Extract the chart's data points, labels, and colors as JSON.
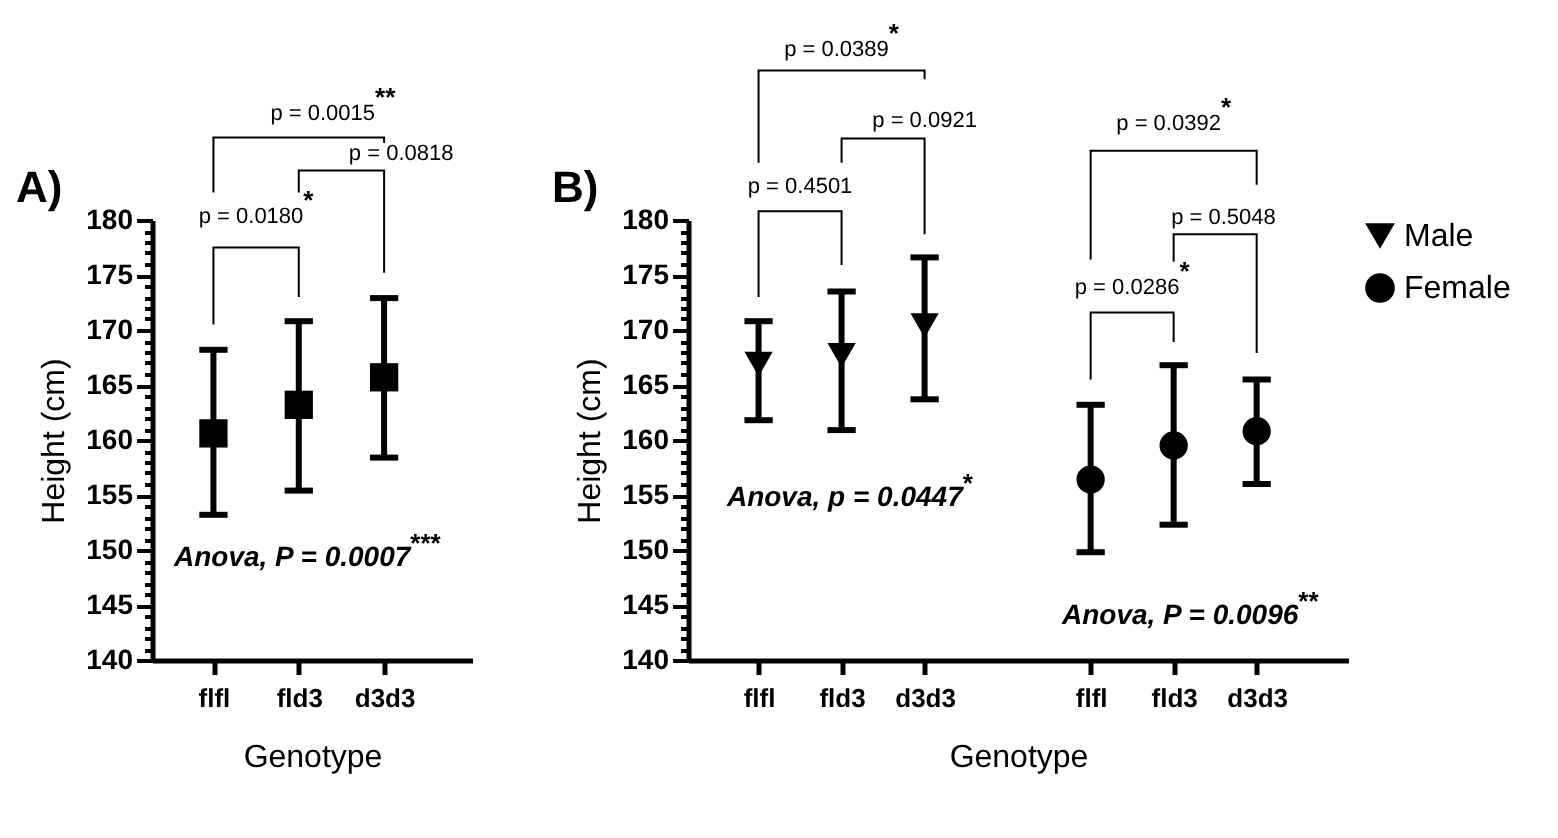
{
  "chart_data": [
    {
      "type": "scatter",
      "title": "A)",
      "xlabel": "Genotype",
      "ylabel": "Height (cm)",
      "categories": [
        "flfl",
        "fld3",
        "d3d3"
      ],
      "marker": "square",
      "color": "#000000",
      "values": [
        160.6,
        163.2,
        165.7
      ],
      "errors": [
        [
          153.2,
          168.2
        ],
        [
          155.4,
          170.8
        ],
        [
          158.4,
          172.9
        ]
      ],
      "ylim": [
        140,
        180
      ],
      "yticks": [
        140,
        {
          "value": 141,
          "label": null
        },
        {
          "value": 142,
          "label": null
        },
        {
          "value": 143,
          "label": null
        },
        {
          "value": 144,
          "label": null
        },
        145,
        {
          "value": 146,
          "label": null
        },
        {
          "value": 147,
          "label": null
        },
        {
          "value": 148,
          "label": null
        },
        {
          "value": 149,
          "label": null
        },
        150,
        {
          "value": 151,
          "label": null
        },
        {
          "value": 152,
          "label": null
        },
        {
          "value": 153,
          "label": null
        },
        {
          "value": 154,
          "label": null
        },
        155,
        {
          "value": 156,
          "label": null
        },
        {
          "value": 157,
          "label": null
        },
        {
          "value": 158,
          "label": null
        },
        {
          "value": 159,
          "label": null
        },
        160,
        {
          "value": 161,
          "label": null
        },
        {
          "value": 162,
          "label": null
        },
        {
          "value": 163,
          "label": null
        },
        {
          "value": 164,
          "label": null
        },
        165,
        {
          "value": 166,
          "label": null
        },
        {
          "value": 167,
          "label": null
        },
        {
          "value": 168,
          "label": null
        },
        {
          "value": 169,
          "label": null
        },
        170,
        {
          "value": 171,
          "label": null
        },
        {
          "value": 172,
          "label": null
        },
        {
          "value": 173,
          "label": null
        },
        {
          "value": 174,
          "label": null
        },
        175,
        {
          "value": 176,
          "label": null
        },
        {
          "value": 177,
          "label": null
        },
        {
          "value": 178,
          "label": null
        },
        {
          "value": 179,
          "label": null
        },
        180
      ],
      "annotations": [
        "p = 0.0015$^{**}$",
        "p = 0.0818",
        "p = 0.0180$^{*}$",
        "Anova, P = 0.0007$^{***}$"
      ]
    },
    {
      "type": "scatter",
      "title": "B)",
      "xlabel": "Genotype",
      "ylabel": "Height (cm)",
      "categories": [
        "flfl",
        "fld3",
        "d3d3",
        null,
        "flfl",
        "fld3",
        "d3d3"
      ],
      "legend": "right",
      "series": [
        {
          "name": "Male",
          "color": "#000000",
          "marker": "triangle",
          "values": [
            166.9,
            167.7,
            170.4,
            null,
            null,
            null,
            null
          ],
          "errors": [
            [
              161.8,
              170.8
            ],
            [
              160.9,
              173.5
            ],
            [
              163.7,
              176.6
            ],
            null,
            null,
            null,
            null
          ]
        },
        {
          "name": "Female",
          "color": "#000000",
          "marker": "circle",
          "values": [
            null,
            null,
            null,
            null,
            156.4,
            159.5,
            160.8
          ],
          "errors": [
            null,
            null,
            null,
            null,
            [
              149.8,
              163.2
            ],
            [
              152.3,
              166.8
            ],
            [
              156.0,
              165.5
            ]
          ]
        }
      ],
      "ylim": [
        140,
        180
      ],
      "yticks": [
        140,
        {
          "value": 141,
          "label": null
        },
        {
          "value": 142,
          "label": null
        },
        {
          "value": 143,
          "label": null
        },
        {
          "value": 144,
          "label": null
        },
        145,
        {
          "value": 146,
          "label": null
        },
        {
          "value": 147,
          "label": null
        },
        {
          "value": 148,
          "label": null
        },
        {
          "value": 149,
          "label": null
        },
        150,
        {
          "value": 151,
          "label": null
        },
        {
          "value": 152,
          "label": null
        },
        {
          "value": 153,
          "label": null
        },
        {
          "value": 154,
          "label": null
        },
        155,
        {
          "value": 156,
          "label": null
        },
        {
          "value": 157,
          "label": null
        },
        {
          "value": 158,
          "label": null
        },
        {
          "value": 159,
          "label": null
        },
        160,
        {
          "value": 161,
          "label": null
        },
        {
          "value": 162,
          "label": null
        },
        {
          "value": 163,
          "label": null
        },
        {
          "value": 164,
          "label": null
        },
        165,
        {
          "value": 166,
          "label": null
        },
        {
          "value": 167,
          "label": null
        },
        {
          "value": 168,
          "label": null
        },
        {
          "value": 169,
          "label": null
        },
        170,
        {
          "value": 171,
          "label": null
        },
        {
          "value": 172,
          "label": null
        },
        {
          "value": 173,
          "label": null
        },
        {
          "value": 174,
          "label": null
        },
        175,
        {
          "value": 176,
          "label": null
        },
        {
          "value": 177,
          "label": null
        },
        {
          "value": 178,
          "label": null
        },
        {
          "value": 179,
          "label": null
        },
        180
      ],
      "annotations": [
        "p = 0.0389$^{*}$",
        "p = 0.0921",
        "p = 0.4501",
        "p = 0.0392$^{*}$",
        "p = 0.5048",
        "p = 0.0286$^{*}$",
        "Anova, p = 0.0447$^{*}$",
        "Anova, P = 0.0096$^{**}$"
      ]
    }
  ]
}
